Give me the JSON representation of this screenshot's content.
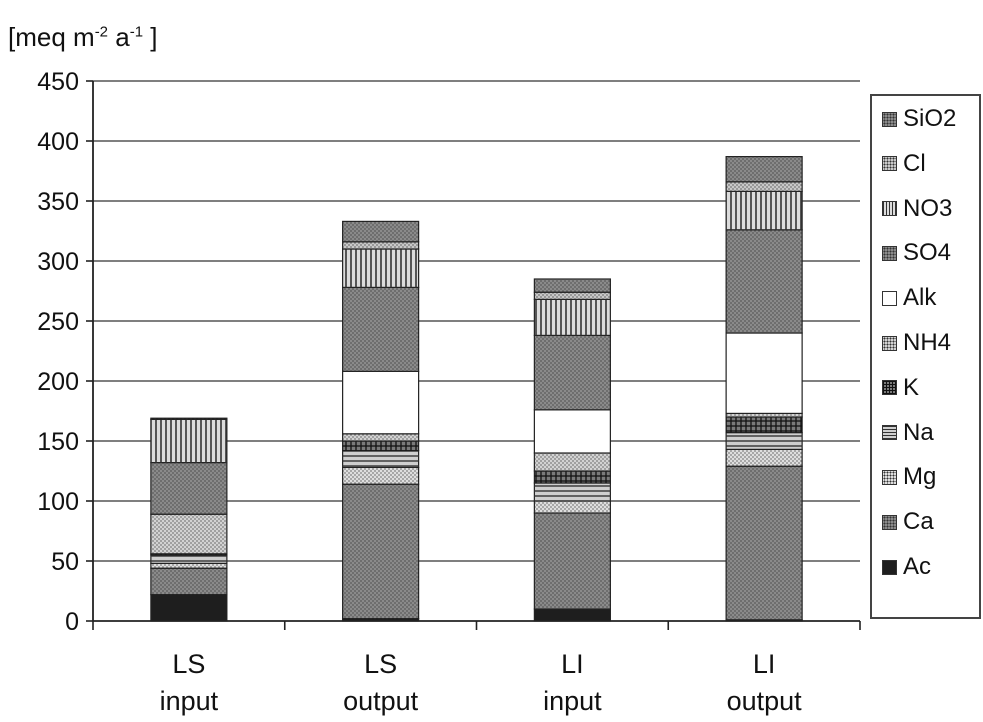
{
  "unit_label": {
    "main": "[meq m",
    "exp1": "-2",
    "mid": " a",
    "exp2": "-1",
    "end": "]"
  },
  "chart_data": {
    "type": "bar",
    "stacked": true,
    "categories": [
      [
        "LS",
        "input"
      ],
      [
        "LS",
        "output"
      ],
      [
        "LI",
        "input"
      ],
      [
        "LI",
        "output"
      ]
    ],
    "ylim": [
      0,
      450
    ],
    "yticks": [
      0,
      50,
      100,
      150,
      200,
      250,
      300,
      350,
      400,
      450
    ],
    "grid": true,
    "legend_position": "right",
    "series": [
      {
        "name": "Ac",
        "values": [
          22,
          2,
          10,
          1
        ],
        "color": "#1e1e1e",
        "pattern": "solid"
      },
      {
        "name": "Ca",
        "values": [
          22,
          112,
          80,
          128
        ],
        "color": "#8a8a8a",
        "pattern": "dots"
      },
      {
        "name": "Mg",
        "values": [
          4,
          14,
          10,
          14
        ],
        "color": "#dedede",
        "pattern": "dots"
      },
      {
        "name": "Na",
        "values": [
          7,
          14,
          15,
          14
        ],
        "color": "#cfcfcf",
        "pattern": "hlines"
      },
      {
        "name": "K",
        "values": [
          1,
          8,
          10,
          13
        ],
        "color": "#7a7a7a",
        "pattern": "grid"
      },
      {
        "name": "NH4",
        "values": [
          33,
          6,
          15,
          3
        ],
        "color": "#d2d2d2",
        "pattern": "dots"
      },
      {
        "name": "Alk",
        "values": [
          0,
          52,
          36,
          67
        ],
        "color": "#ffffff",
        "pattern": "solid"
      },
      {
        "name": "SO4",
        "values": [
          43,
          70,
          62,
          86
        ],
        "color": "#8a8a8a",
        "pattern": "dots"
      },
      {
        "name": "NO3",
        "values": [
          36,
          32,
          30,
          32
        ],
        "color": "#dcdcdc",
        "pattern": "vlines"
      },
      {
        "name": "Cl",
        "values": [
          1,
          6,
          6,
          8
        ],
        "color": "#c8c8c8",
        "pattern": "dots"
      },
      {
        "name": "SiO2",
        "values": [
          0,
          17,
          11,
          21
        ],
        "color": "#8a8a8a",
        "pattern": "dots"
      }
    ]
  }
}
